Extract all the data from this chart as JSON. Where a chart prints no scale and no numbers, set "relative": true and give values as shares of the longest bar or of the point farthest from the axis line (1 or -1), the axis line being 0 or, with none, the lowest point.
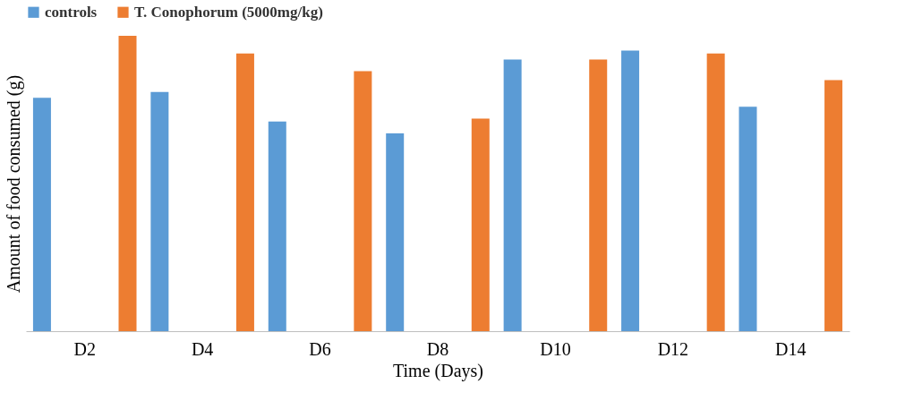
{
  "chart_data": {
    "type": "bar",
    "xlabel": "Time (Days)",
    "ylabel": "Amount of food consumed (g)",
    "categories": [
      "D2",
      "D4",
      "D6",
      "D8",
      "D10",
      "D12",
      "D14"
    ],
    "relative": true,
    "legend": "top",
    "grid": false,
    "series": [
      {
        "name": "controls",
        "color": "#5b9bd5",
        "values": [
          0.79,
          0.81,
          0.71,
          0.67,
          0.92,
          0.95,
          0.76
        ]
      },
      {
        "name": "T. Conophorum (5000mg/kg)",
        "color": "#ed7d31",
        "values": [
          1,
          0.94,
          0.88,
          0.72,
          0.92,
          0.94,
          0.85
        ]
      }
    ]
  }
}
